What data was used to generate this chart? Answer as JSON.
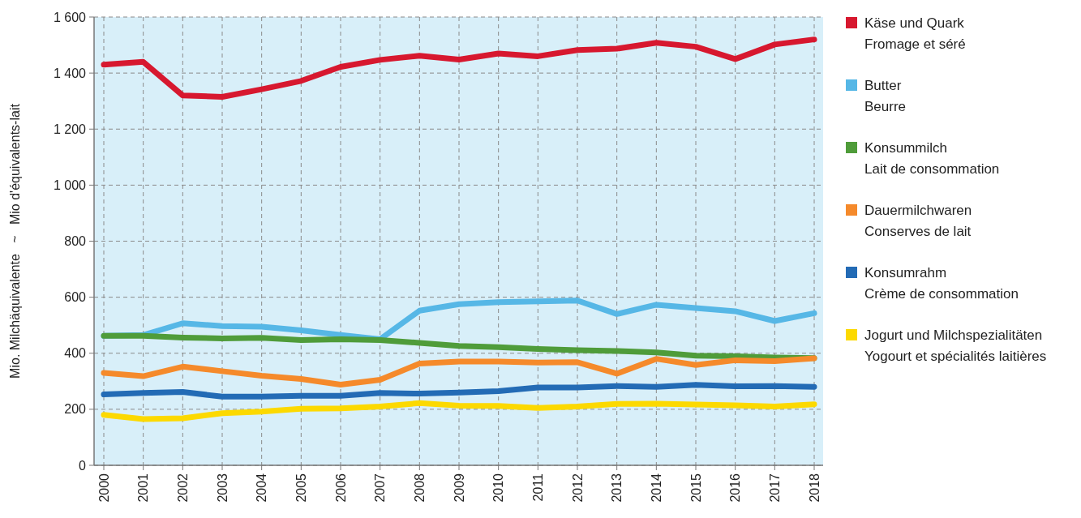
{
  "chart_data": {
    "type": "line",
    "ylabel": "Mio. Milchäquivalente   ~   Mio d'équivalents-lait",
    "categories": [
      "2000",
      "2001",
      "2002",
      "2003",
      "2004",
      "2005",
      "2006",
      "2007",
      "2008",
      "2009",
      "2010",
      "2011",
      "2012",
      "2013",
      "2014",
      "2015",
      "2016",
      "2017",
      "2018"
    ],
    "ylim": [
      0,
      1600
    ],
    "yticks": [
      0,
      200,
      400,
      600,
      800,
      {
        "value": 1000,
        "label": "1 000"
      },
      {
        "value": 1200,
        "label": "1 200"
      },
      {
        "value": 1400,
        "label": "1 400"
      },
      {
        "value": 1600,
        "label": "1 600"
      }
    ],
    "grid": true,
    "legend": "right",
    "marker": "none",
    "line_style": "solid",
    "series": [
      {
        "name": "Käse und Quark\nFromage et séré",
        "color": "#d7182f",
        "values": [
          1430,
          1440,
          1320,
          1315,
          1342,
          1372,
          1422,
          1447,
          1462,
          1448,
          1470,
          1460,
          1482,
          1487,
          1508,
          1494,
          1450,
          1502,
          1520
        ]
      },
      {
        "name": "Butter\nBeurre",
        "color": "#56b7e6",
        "values": [
          462,
          465,
          507,
          497,
          495,
          482,
          465,
          450,
          552,
          575,
          582,
          585,
          588,
          540,
          573,
          561,
          550,
          515,
          543
        ]
      },
      {
        "name": "Konsummilch\nLait de consommation",
        "color": "#4f9c3a",
        "values": [
          462,
          462,
          456,
          453,
          455,
          447,
          450,
          447,
          437,
          426,
          422,
          415,
          411,
          408,
          403,
          391,
          389,
          385,
          383
        ]
      },
      {
        "name": "Dauermilchwaren\nConserves de lait",
        "color": "#f58a2b",
        "values": [
          330,
          318,
          352,
          336,
          320,
          308,
          288,
          305,
          363,
          370,
          370,
          367,
          368,
          327,
          380,
          358,
          375,
          372,
          382
        ]
      },
      {
        "name": "Konsumrahm\nCrème de consommation",
        "color": "#236bb5",
        "values": [
          253,
          258,
          262,
          245,
          245,
          248,
          248,
          258,
          256,
          260,
          265,
          278,
          278,
          283,
          280,
          287,
          282,
          283,
          280
        ]
      },
      {
        "name": "Jogurt und Milchspezialitäten\nYogourt et spécialités laitières",
        "color": "#fcd900",
        "values": [
          180,
          165,
          168,
          186,
          192,
          202,
          203,
          210,
          222,
          213,
          212,
          205,
          210,
          219,
          220,
          217,
          214,
          210,
          218
        ]
      }
    ]
  }
}
